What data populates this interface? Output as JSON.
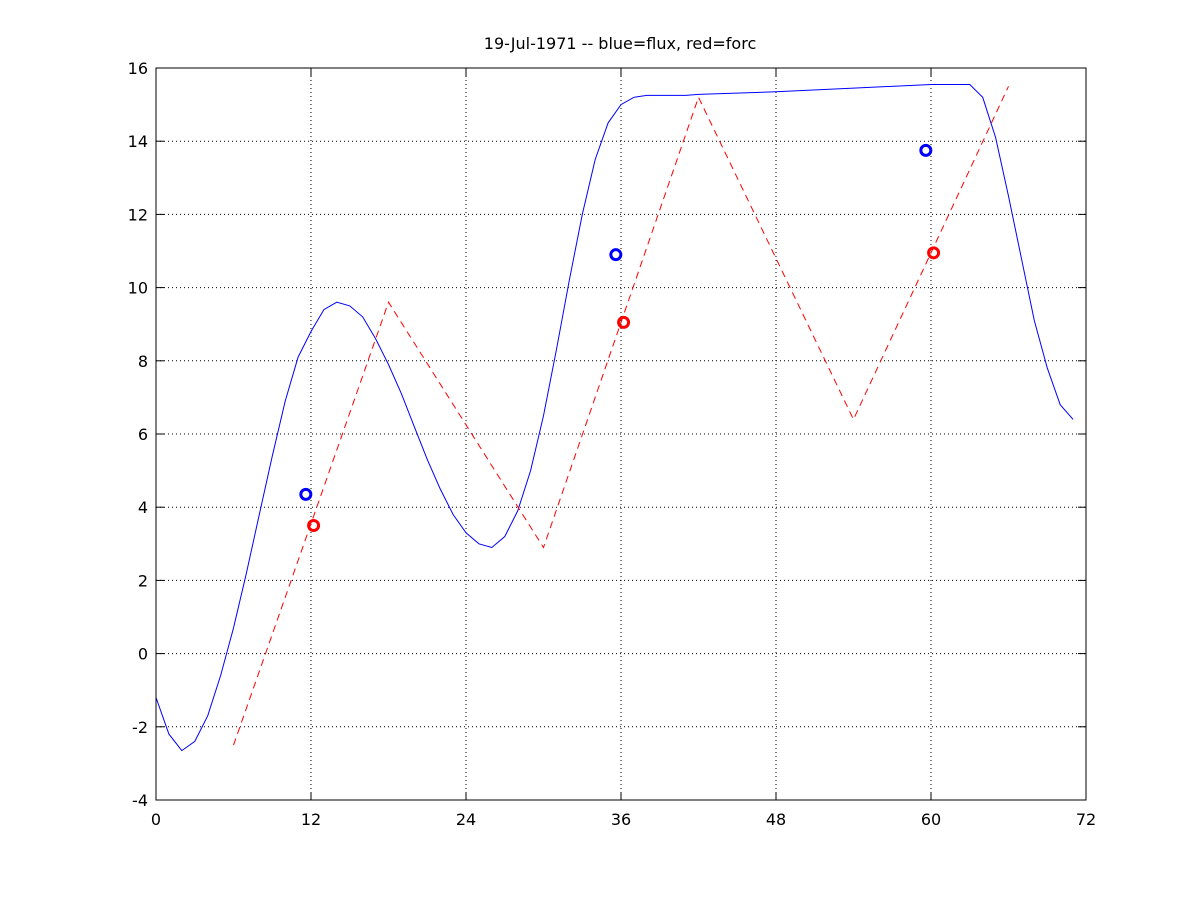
{
  "chart_data": {
    "type": "line",
    "title": "19-Jul-1971 -- blue=flux, red=forc",
    "xlabel": "",
    "ylabel": "",
    "xlim": [
      0,
      72
    ],
    "ylim": [
      -4,
      16
    ],
    "x_ticks": [
      0,
      12,
      24,
      36,
      48,
      60,
      72
    ],
    "y_ticks": [
      -4,
      -2,
      0,
      2,
      4,
      6,
      8,
      10,
      12,
      14,
      16
    ],
    "grid": true,
    "series": [
      {
        "color": "#0000ff",
        "style": "solid",
        "x": [
          0,
          1,
          2,
          3,
          4,
          5,
          6,
          7,
          8,
          9,
          10,
          11,
          12,
          13,
          14,
          15,
          16,
          17,
          18,
          19,
          20,
          21,
          22,
          23,
          24,
          25,
          26,
          27,
          28,
          29,
          30,
          31,
          32,
          33,
          34,
          35,
          36,
          37,
          38,
          39,
          40,
          41,
          42,
          48,
          54,
          60,
          63,
          64,
          65,
          66,
          67,
          68,
          69,
          70,
          71
        ],
        "y": [
          -1.2,
          -2.2,
          -2.65,
          -2.4,
          -1.7,
          -0.6,
          0.7,
          2.2,
          3.8,
          5.4,
          6.9,
          8.1,
          8.8,
          9.4,
          9.6,
          9.5,
          9.2,
          8.6,
          7.9,
          7.1,
          6.2,
          5.3,
          4.5,
          3.8,
          3.3,
          3.0,
          2.9,
          3.2,
          3.9,
          5.0,
          6.5,
          8.3,
          10.2,
          12.0,
          13.5,
          14.5,
          15.0,
          15.2,
          15.25,
          15.25,
          15.25,
          15.25,
          15.28,
          15.35,
          15.45,
          15.55,
          15.55,
          15.2,
          14.1,
          12.5,
          10.8,
          9.1,
          7.8,
          6.8,
          6.4
        ]
      },
      {
        "color": "#ff0000",
        "style": "dashed",
        "x": [
          6,
          18,
          30,
          42,
          54,
          66
        ],
        "y": [
          -2.5,
          9.6,
          2.9,
          15.2,
          6.4,
          15.5
        ]
      }
    ],
    "markers": [
      {
        "color": "#0000ff",
        "x": 11.6,
        "y": 4.35
      },
      {
        "color": "#ff0000",
        "x": 12.2,
        "y": 3.5
      },
      {
        "color": "#0000ff",
        "x": 35.6,
        "y": 10.9
      },
      {
        "color": "#ff0000",
        "x": 36.2,
        "y": 9.05
      },
      {
        "color": "#0000ff",
        "x": 59.6,
        "y": 13.75
      },
      {
        "color": "#ff0000",
        "x": 60.2,
        "y": 10.95
      }
    ]
  }
}
